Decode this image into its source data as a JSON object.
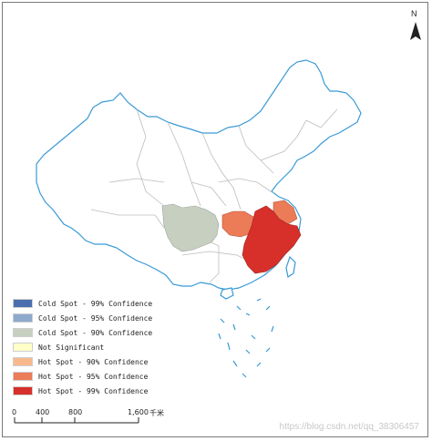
{
  "north": {
    "label": "N"
  },
  "legend": [
    {
      "label": "Cold Spot - 99% Confidence",
      "color": "#4a6fae"
    },
    {
      "label": "Cold Spot - 95% Confidence",
      "color": "#8ea9cc"
    },
    {
      "label": "Cold Spot - 90% Confidence",
      "color": "#c6cfc0"
    },
    {
      "label": "Not Significant",
      "color": "#ffffc8"
    },
    {
      "label": "Hot Spot - 90% Confidence",
      "color": "#f7b98c"
    },
    {
      "label": "Hot Spot - 95% Confidence",
      "color": "#ec7b58"
    },
    {
      "label": "Hot Spot - 99% Confidence",
      "color": "#d7302a"
    }
  ],
  "scale_bar": {
    "ticks": [
      "0",
      "400",
      "800",
      "1,600"
    ],
    "unit": "千米"
  },
  "regions": {
    "cold_spot_90": "#c6cfc0",
    "hot_spot_95": "#ec7b58",
    "hot_spot_99": "#d7302a",
    "boundary_color": "#3a9ad6",
    "province_line_color": "#bdbdbd"
  },
  "watermark": "https://blog.csdn.net/qq_38306457"
}
